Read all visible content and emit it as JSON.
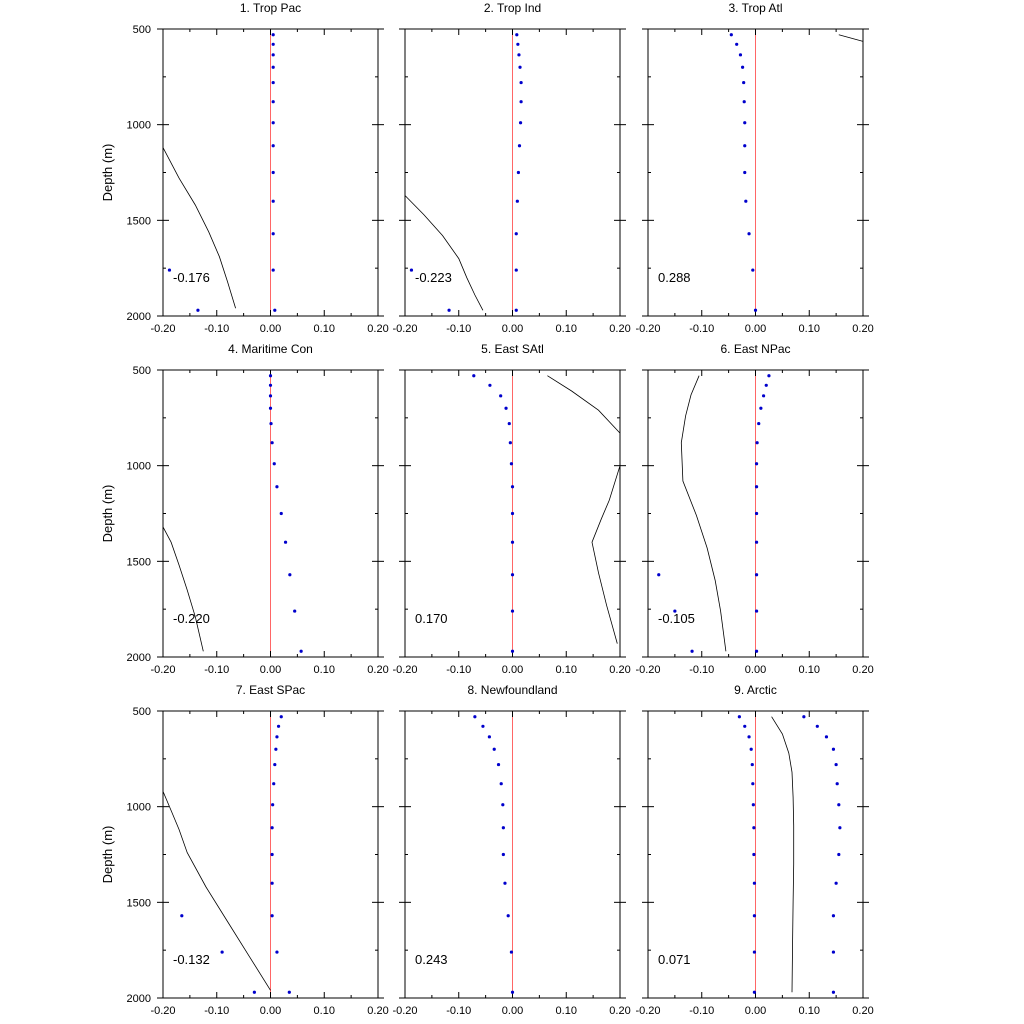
{
  "figure": {
    "ylabel": "Depth (m)",
    "depth_tick_labels": [
      "500",
      "1000",
      "1500",
      "2000"
    ],
    "x_tick_labels": [
      "-0.20",
      "-0.10",
      "0.00",
      "0.10",
      "0.20"
    ],
    "colors": {
      "dots": "#0000cc",
      "zero_line": "#ff6666",
      "curve": "#000000"
    }
  },
  "chart_data": [
    {
      "type": "scatter",
      "title": "1. Trop Pac",
      "value_label": "-0.176",
      "xlim": [
        -0.2,
        0.2
      ],
      "ylim": [
        2000,
        500
      ],
      "y_reversed": true,
      "dots": [
        [
          0.005,
          530
        ],
        [
          0.005,
          580
        ],
        [
          0.005,
          635
        ],
        [
          0.005,
          700
        ],
        [
          0.005,
          780
        ],
        [
          0.005,
          880
        ],
        [
          0.005,
          990
        ],
        [
          0.005,
          1110
        ],
        [
          0.005,
          1250
        ],
        [
          0.005,
          1400
        ],
        [
          0.005,
          1570
        ],
        [
          0.005,
          1760
        ],
        [
          -0.188,
          1760
        ],
        [
          -0.135,
          1970
        ],
        [
          0.008,
          1970
        ]
      ],
      "curve": [
        [
          -0.2,
          1120
        ],
        [
          -0.17,
          1280
        ],
        [
          -0.14,
          1420
        ],
        [
          -0.115,
          1560
        ],
        [
          -0.095,
          1690
        ],
        [
          -0.08,
          1820
        ],
        [
          -0.065,
          1960
        ]
      ]
    },
    {
      "type": "scatter",
      "title": "2. Trop Ind",
      "value_label": "-0.223",
      "xlim": [
        -0.2,
        0.2
      ],
      "ylim": [
        2000,
        500
      ],
      "y_reversed": true,
      "dots": [
        [
          0.008,
          530
        ],
        [
          0.01,
          580
        ],
        [
          0.012,
          635
        ],
        [
          0.014,
          700
        ],
        [
          0.016,
          780
        ],
        [
          0.016,
          880
        ],
        [
          0.015,
          990
        ],
        [
          0.013,
          1110
        ],
        [
          0.011,
          1250
        ],
        [
          0.009,
          1400
        ],
        [
          0.007,
          1570
        ],
        [
          0.007,
          1760
        ],
        [
          -0.188,
          1760
        ],
        [
          -0.118,
          1970
        ],
        [
          0.007,
          1970
        ]
      ],
      "curve": [
        [
          -0.2,
          1370
        ],
        [
          -0.165,
          1470
        ],
        [
          -0.13,
          1580
        ],
        [
          -0.1,
          1700
        ],
        [
          -0.085,
          1800
        ],
        [
          -0.07,
          1890
        ],
        [
          -0.055,
          1970
        ]
      ]
    },
    {
      "type": "scatter",
      "title": "3. Trop Atl",
      "value_label": "0.288",
      "xlim": [
        -0.2,
        0.2
      ],
      "ylim": [
        2000,
        500
      ],
      "y_reversed": true,
      "dots": [
        [
          -0.045,
          530
        ],
        [
          -0.035,
          580
        ],
        [
          -0.028,
          635
        ],
        [
          -0.024,
          700
        ],
        [
          -0.022,
          780
        ],
        [
          -0.021,
          880
        ],
        [
          -0.02,
          990
        ],
        [
          -0.02,
          1110
        ],
        [
          -0.02,
          1250
        ],
        [
          -0.018,
          1400
        ],
        [
          -0.012,
          1570
        ],
        [
          -0.005,
          1760
        ],
        [
          0.0,
          1970
        ]
      ],
      "curve": [
        [
          0.155,
          530
        ],
        [
          0.2,
          565
        ]
      ]
    },
    {
      "type": "scatter",
      "title": "4. Maritime Con",
      "value_label": "-0.220",
      "xlim": [
        -0.2,
        0.2
      ],
      "ylim": [
        2000,
        500
      ],
      "y_reversed": true,
      "dots": [
        [
          0.0,
          530
        ],
        [
          0.0,
          580
        ],
        [
          0.0,
          635
        ],
        [
          0.0,
          700
        ],
        [
          0.001,
          780
        ],
        [
          0.003,
          880
        ],
        [
          0.007,
          990
        ],
        [
          0.012,
          1110
        ],
        [
          0.02,
          1250
        ],
        [
          0.028,
          1400
        ],
        [
          0.036,
          1570
        ],
        [
          0.045,
          1760
        ],
        [
          0.057,
          1970
        ]
      ],
      "curve": [
        [
          -0.2,
          1320
        ],
        [
          -0.185,
          1400
        ],
        [
          -0.17,
          1520
        ],
        [
          -0.155,
          1650
        ],
        [
          -0.14,
          1790
        ],
        [
          -0.125,
          1970
        ]
      ]
    },
    {
      "type": "scatter",
      "title": "5. East SAtl",
      "value_label": "0.170",
      "xlim": [
        -0.2,
        0.2
      ],
      "ylim": [
        2000,
        500
      ],
      "y_reversed": true,
      "dots": [
        [
          -0.072,
          530
        ],
        [
          -0.042,
          580
        ],
        [
          -0.022,
          635
        ],
        [
          -0.012,
          700
        ],
        [
          -0.006,
          780
        ],
        [
          -0.004,
          880
        ],
        [
          -0.002,
          990
        ],
        [
          0.0,
          1110
        ],
        [
          0.0,
          1250
        ],
        [
          0.0,
          1400
        ],
        [
          0.0,
          1570
        ],
        [
          0.0,
          1760
        ],
        [
          0.0,
          1970
        ]
      ],
      "curve": [
        [
          0.065,
          530
        ],
        [
          0.11,
          610
        ],
        [
          0.16,
          710
        ],
        [
          0.2,
          830
        ],
        [
          0.2,
          1000
        ],
        [
          0.18,
          1180
        ],
        [
          0.165,
          1280
        ],
        [
          0.148,
          1400
        ],
        [
          0.16,
          1560
        ],
        [
          0.175,
          1730
        ],
        [
          0.195,
          1930
        ]
      ]
    },
    {
      "type": "scatter",
      "title": "6. East NPac",
      "value_label": "-0.105",
      "xlim": [
        -0.2,
        0.2
      ],
      "ylim": [
        2000,
        500
      ],
      "y_reversed": true,
      "dots": [
        [
          0.025,
          530
        ],
        [
          0.02,
          580
        ],
        [
          0.015,
          635
        ],
        [
          0.01,
          700
        ],
        [
          0.006,
          780
        ],
        [
          0.003,
          880
        ],
        [
          0.002,
          990
        ],
        [
          0.002,
          1110
        ],
        [
          0.002,
          1250
        ],
        [
          0.002,
          1400
        ],
        [
          0.002,
          1570
        ],
        [
          0.002,
          1760
        ],
        [
          0.002,
          1970
        ],
        [
          -0.18,
          1570
        ],
        [
          -0.15,
          1760
        ],
        [
          -0.118,
          1970
        ]
      ],
      "curve": [
        [
          -0.105,
          530
        ],
        [
          -0.12,
          630
        ],
        [
          -0.13,
          740
        ],
        [
          -0.138,
          880
        ],
        [
          -0.135,
          1080
        ],
        [
          -0.11,
          1260
        ],
        [
          -0.09,
          1430
        ],
        [
          -0.075,
          1600
        ],
        [
          -0.065,
          1760
        ],
        [
          -0.055,
          1970
        ]
      ]
    },
    {
      "type": "scatter",
      "title": "7. East SPac",
      "value_label": "-0.132",
      "xlim": [
        -0.2,
        0.2
      ],
      "ylim": [
        2000,
        500
      ],
      "y_reversed": true,
      "dots": [
        [
          0.02,
          530
        ],
        [
          0.015,
          580
        ],
        [
          0.012,
          635
        ],
        [
          0.01,
          700
        ],
        [
          0.008,
          780
        ],
        [
          0.006,
          880
        ],
        [
          0.004,
          990
        ],
        [
          0.003,
          1110
        ],
        [
          0.003,
          1250
        ],
        [
          0.003,
          1400
        ],
        [
          0.003,
          1570
        ],
        [
          0.012,
          1760
        ],
        [
          -0.165,
          1570
        ],
        [
          -0.09,
          1760
        ],
        [
          -0.03,
          1970
        ],
        [
          0.035,
          1970
        ]
      ],
      "curve": [
        [
          -0.2,
          920
        ],
        [
          -0.185,
          1020
        ],
        [
          -0.17,
          1120
        ],
        [
          -0.155,
          1240
        ],
        [
          -0.12,
          1420
        ],
        [
          -0.08,
          1600
        ],
        [
          -0.04,
          1780
        ],
        [
          0.0,
          1960
        ]
      ]
    },
    {
      "type": "scatter",
      "title": "8. Newfoundland",
      "value_label": "0.243",
      "xlim": [
        -0.2,
        0.2
      ],
      "ylim": [
        2000,
        500
      ],
      "y_reversed": true,
      "dots": [
        [
          -0.07,
          530
        ],
        [
          -0.055,
          580
        ],
        [
          -0.043,
          635
        ],
        [
          -0.034,
          700
        ],
        [
          -0.026,
          780
        ],
        [
          -0.021,
          880
        ],
        [
          -0.018,
          990
        ],
        [
          -0.017,
          1110
        ],
        [
          -0.017,
          1250
        ],
        [
          -0.014,
          1400
        ],
        [
          -0.008,
          1570
        ],
        [
          -0.002,
          1760
        ],
        [
          0.0,
          1970
        ]
      ],
      "curve": []
    },
    {
      "type": "scatter",
      "title": "9. Arctic",
      "value_label": "0.071",
      "xlim": [
        -0.2,
        0.2
      ],
      "ylim": [
        2000,
        500
      ],
      "y_reversed": true,
      "dots": [
        [
          -0.03,
          530
        ],
        [
          -0.02,
          580
        ],
        [
          -0.012,
          635
        ],
        [
          -0.008,
          700
        ],
        [
          -0.006,
          780
        ],
        [
          -0.005,
          880
        ],
        [
          -0.004,
          990
        ],
        [
          -0.003,
          1110
        ],
        [
          -0.003,
          1250
        ],
        [
          -0.002,
          1400
        ],
        [
          -0.002,
          1570
        ],
        [
          -0.002,
          1760
        ],
        [
          -0.002,
          1970
        ],
        [
          0.09,
          530
        ],
        [
          0.115,
          580
        ],
        [
          0.132,
          635
        ],
        [
          0.145,
          700
        ],
        [
          0.15,
          780
        ],
        [
          0.152,
          880
        ],
        [
          0.155,
          990
        ],
        [
          0.157,
          1110
        ],
        [
          0.155,
          1250
        ],
        [
          0.15,
          1400
        ],
        [
          0.145,
          1570
        ],
        [
          0.145,
          1760
        ],
        [
          0.145,
          1970
        ]
      ],
      "curve": [
        [
          0.03,
          530
        ],
        [
          0.05,
          620
        ],
        [
          0.062,
          720
        ],
        [
          0.068,
          820
        ],
        [
          0.07,
          950
        ],
        [
          0.071,
          1100
        ],
        [
          0.071,
          1300
        ],
        [
          0.07,
          1500
        ],
        [
          0.069,
          1700
        ],
        [
          0.068,
          1970
        ]
      ]
    }
  ]
}
